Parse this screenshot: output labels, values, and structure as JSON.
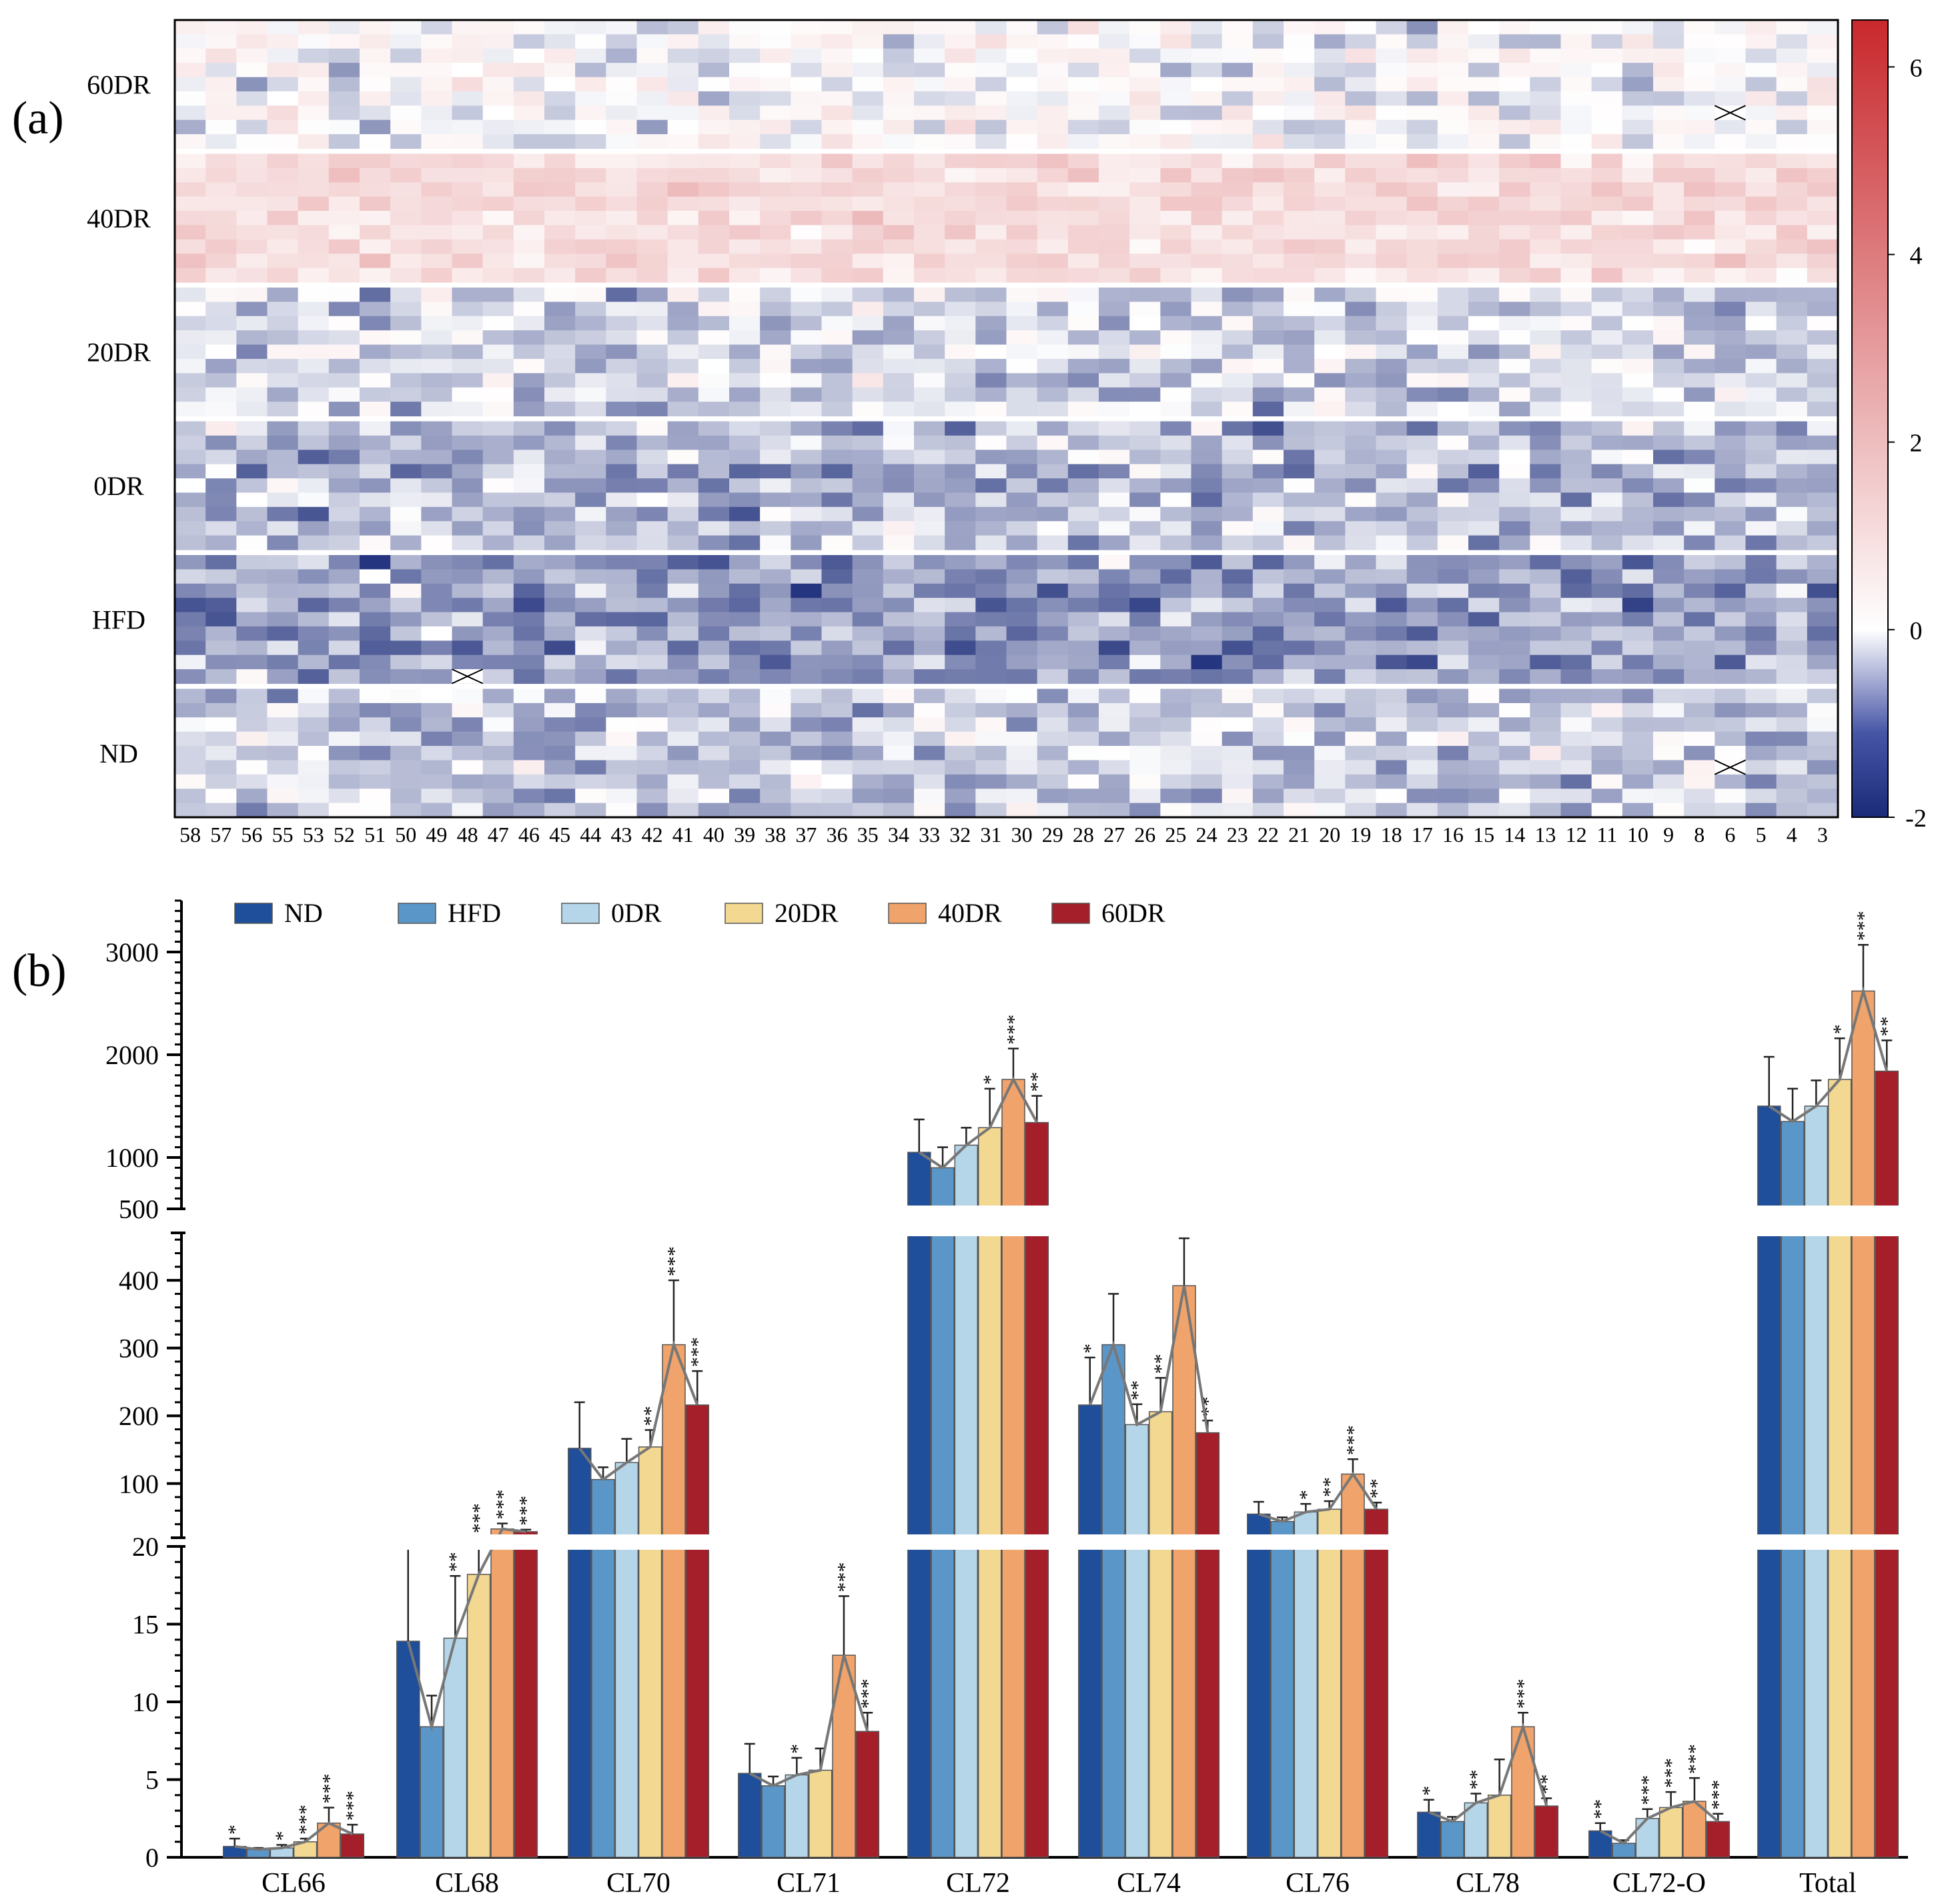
{
  "panels": {
    "a": {
      "label": "(a)"
    },
    "b": {
      "label": "(b)"
    }
  },
  "chart_data": [
    {
      "type": "heatmap",
      "panel": "(a)",
      "row_groups": [
        "60DR",
        "40DR",
        "20DR",
        "0DR",
        "HFD",
        "ND"
      ],
      "rows_per_group": 9,
      "columns": [
        "58",
        "57",
        "56",
        "55",
        "53",
        "52",
        "51",
        "50",
        "49",
        "48",
        "47",
        "46",
        "45",
        "44",
        "43",
        "42",
        "41",
        "40",
        "39",
        "38",
        "37",
        "36",
        "35",
        "34",
        "33",
        "32",
        "31",
        "30",
        "29",
        "28",
        "27",
        "26",
        "25",
        "24",
        "23",
        "22",
        "21",
        "20",
        "19",
        "18",
        "17",
        "16",
        "15",
        "14",
        "13",
        "12",
        "11",
        "10",
        "9",
        "8",
        "6",
        "5",
        "4",
        "3"
      ],
      "colorbar": {
        "min": -2,
        "max": 6.5,
        "ticks": [
          -2,
          0,
          2,
          4,
          6
        ],
        "low_color": "#1a2a78",
        "mid_color": "#ffffff",
        "high_color": "#c8282c"
      },
      "missing_cells": [
        {
          "group": "60DR",
          "row": 6,
          "column": "6"
        },
        {
          "group": "HFD",
          "row": 8,
          "column": "48"
        },
        {
          "group": "ND",
          "row": 5,
          "column": "6"
        }
      ],
      "grid": false,
      "legend": "right"
    },
    {
      "type": "bar",
      "panel": "(b)",
      "categories": [
        "CL66",
        "CL68",
        "CL70",
        "CL71",
        "CL72",
        "CL74",
        "CL76",
        "CL78",
        "CL72-O",
        "Total"
      ],
      "series": [
        {
          "name": "ND",
          "color": "#1f4e9a",
          "values": [
            0.7,
            13.9,
            152,
            5.4,
            1050,
            216,
            55,
            2.9,
            1.7,
            1500
          ],
          "errors": [
            0.5,
            7.5,
            68,
            1.9,
            320,
            70,
            18,
            0.8,
            0.5,
            480
          ]
        },
        {
          "name": "HFD",
          "color": "#5b96c8",
          "values": [
            0.5,
            8.4,
            106,
            4.6,
            900,
            305,
            44,
            2.3,
            0.9,
            1350
          ],
          "errors": [
            0.1,
            2.0,
            18,
            0.6,
            200,
            75,
            6,
            0.3,
            0.2,
            320
          ]
        },
        {
          "name": "0DR",
          "color": "#b5d6e9",
          "values": [
            0.6,
            14.1,
            131,
            5.3,
            1120,
            187,
            58,
            3.5,
            2.5,
            1500
          ],
          "errors": [
            0.2,
            4.0,
            35,
            1.1,
            170,
            30,
            12,
            0.6,
            0.6,
            250
          ]
        },
        {
          "name": "20DR",
          "color": "#f3d891",
          "values": [
            1.0,
            18.2,
            154,
            5.6,
            1290,
            206,
            62,
            4.0,
            3.2,
            1760
          ],
          "errors": [
            0.2,
            2.5,
            25,
            1.4,
            380,
            50,
            12,
            2.3,
            1.0,
            400
          ]
        },
        {
          "name": "40DR",
          "color": "#f0a36a",
          "values": [
            2.2,
            33,
            305,
            13.0,
            1760,
            392,
            114,
            8.4,
            3.6,
            2620
          ],
          "errors": [
            1.0,
            8,
            95,
            3.8,
            300,
            70,
            22,
            0.9,
            1.5,
            450
          ]
        },
        {
          "name": "60DR",
          "color": "#a51f2b",
          "values": [
            1.5,
            29,
            216,
            8.1,
            1340,
            175,
            62,
            3.3,
            2.3,
            1840
          ],
          "errors": [
            0.6,
            3,
            50,
            1.2,
            260,
            18,
            10,
            0.5,
            0.5,
            300
          ]
        }
      ],
      "significance": [
        [
          "*",
          "",
          "*",
          "***",
          "***",
          "***"
        ],
        [
          "",
          "",
          "**",
          "***",
          "***",
          "***"
        ],
        [
          "",
          "",
          "",
          "**",
          "***",
          "***"
        ],
        [
          "",
          "",
          "*",
          "",
          "***",
          "***"
        ],
        [
          "",
          "",
          "",
          "*",
          "***",
          "**"
        ],
        [
          "*",
          "",
          "**",
          "**",
          "",
          "**"
        ],
        [
          "",
          "",
          "*",
          "**",
          "***",
          "**"
        ],
        [
          "*",
          "",
          "**",
          "",
          "***",
          "**"
        ],
        [
          "**",
          "",
          "***",
          "***",
          "***",
          "***"
        ],
        [
          "",
          "",
          "",
          "*",
          "***",
          "**"
        ]
      ],
      "trend_line": true,
      "yaxis": {
        "broken": true,
        "segments": [
          {
            "range": [
              0,
              20
            ],
            "ticks": [
              0,
              5,
              10,
              15,
              20
            ]
          },
          {
            "range": [
              20,
              470
            ],
            "ticks": [
              100,
              200,
              300,
              400
            ]
          },
          {
            "range": [
              500,
              3500
            ],
            "ticks": [
              500,
              1000,
              2000,
              3000
            ]
          }
        ]
      },
      "legend": "top-left",
      "grid": false
    }
  ]
}
